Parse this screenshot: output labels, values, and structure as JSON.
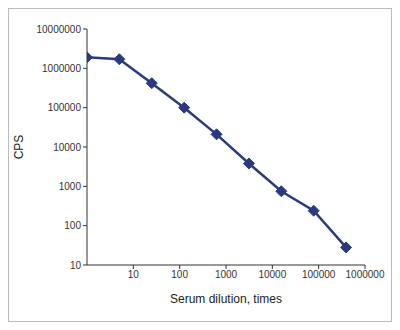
{
  "chart_data": {
    "type": "line",
    "x_label": "Serum dilution, times",
    "y_label": "CPS",
    "log": true,
    "grid": false,
    "marker": "diamond",
    "color": "#2b3a7e",
    "x": [
      1,
      5,
      25,
      125,
      625,
      3125,
      15625,
      78125,
      390625
    ],
    "values": [
      1900000,
      1700000,
      420000,
      100000,
      21000,
      3800,
      750,
      240,
      28
    ],
    "xlim": [
      1,
      1000000
    ],
    "xticks": [
      10,
      100,
      1000,
      10000,
      100000,
      1000000
    ],
    "ylim": [
      10,
      10000000
    ],
    "yticks": [
      10,
      100,
      1000,
      10000,
      100000,
      1000000,
      10000000
    ]
  }
}
